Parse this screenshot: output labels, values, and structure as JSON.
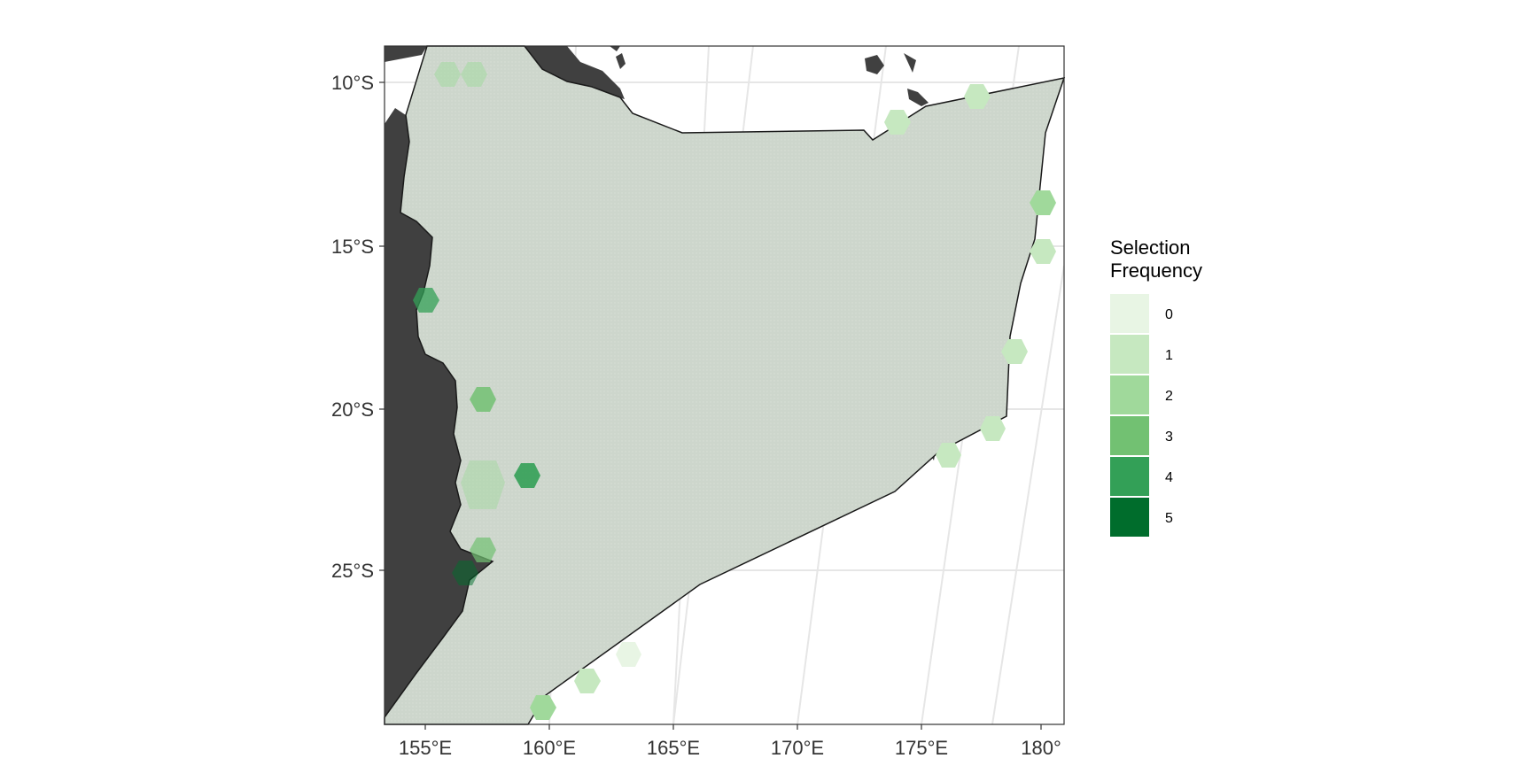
{
  "map": {
    "axes": {
      "y_labels": [
        "10°S",
        "15°S",
        "20°S",
        "25°S"
      ],
      "x_labels": [
        "155°E",
        "160°E",
        "165°E",
        "170°E",
        "175°E",
        "180°"
      ]
    },
    "colors": {
      "land": "#404040",
      "planning_region": "#cdd6cc",
      "graticule": "#e6e6e6",
      "panel_border": "#333333"
    }
  },
  "legend": {
    "title_line1": "Selection",
    "title_line2": "Frequency",
    "items": [
      {
        "label": "0",
        "color": "#e8f5e4"
      },
      {
        "label": "1",
        "color": "#c6e8c0"
      },
      {
        "label": "2",
        "color": "#a0d99b"
      },
      {
        "label": "3",
        "color": "#72c172"
      },
      {
        "label": "4",
        "color": "#33a057"
      },
      {
        "label": "5",
        "color": "#006d2c"
      }
    ]
  }
}
